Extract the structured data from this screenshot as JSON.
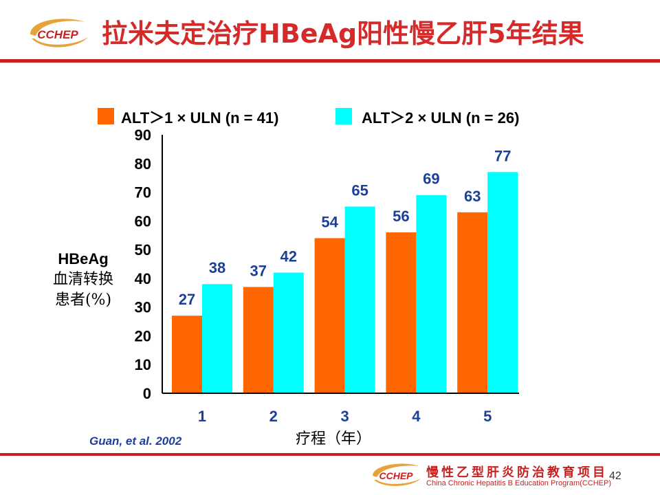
{
  "slide": {
    "title": "拉米夫定治疗HBeAg阳性慢乙肝5年结果",
    "logo_text": "CCHEP",
    "citation": "Guan, et al. 2002",
    "footer_cn": "慢性乙型肝炎防治教育项目",
    "footer_en": "China Chronic Hepatitis B Education Program(CCHEP)",
    "page_number": "42"
  },
  "colors": {
    "accent_red": "#c91f1f",
    "title_red": "#d42a2a",
    "series1": "#ff6600",
    "series2": "#00ffff",
    "value_label": "#1d3f9a"
  },
  "chart_data": {
    "type": "bar",
    "categories": [
      "1",
      "2",
      "3",
      "4",
      "5"
    ],
    "series": [
      {
        "name": "ALT＞1 × ULN (n = 41)",
        "values": [
          27,
          37,
          54,
          56,
          63
        ]
      },
      {
        "name": "ALT＞2 × ULN (n = 26)",
        "values": [
          38,
          42,
          65,
          69,
          77
        ]
      }
    ],
    "ylabel_lines": [
      "HBeAg",
      "血清转换",
      "患者(%)"
    ],
    "xlabel": "疗程（年）",
    "ylim": [
      0,
      90
    ],
    "yticks": [
      0,
      10,
      20,
      30,
      40,
      50,
      60,
      70,
      80,
      90
    ],
    "grid": false,
    "legend_position": "top"
  }
}
